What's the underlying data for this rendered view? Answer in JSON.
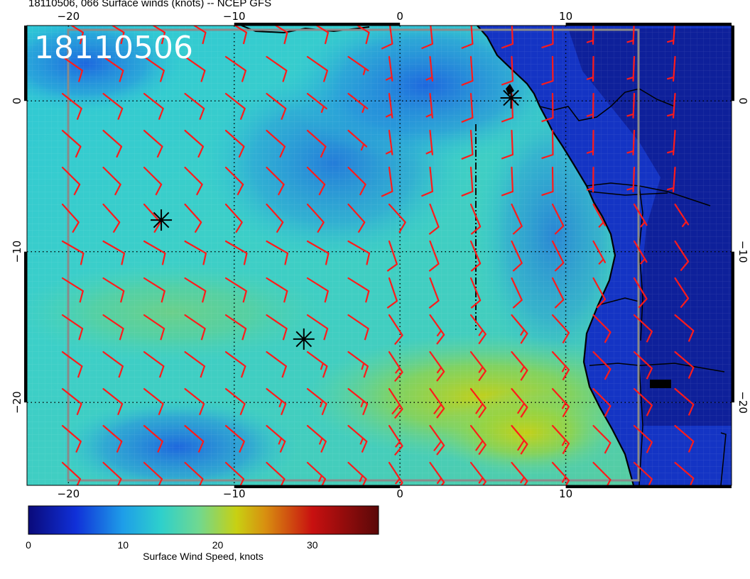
{
  "header": {
    "title": "18110506, 066 Surface winds (knots) -- NCEP GFS"
  },
  "map": {
    "date_stamp": "18110506",
    "projection": "lon/lat",
    "lon_range": [
      -22.5,
      20
    ],
    "lat_range": [
      -25.5,
      5
    ],
    "lon_ticks": [
      {
        "value": -20,
        "label": "−20"
      },
      {
        "value": -10,
        "label": "−10"
      },
      {
        "value": 0,
        "label": "0"
      },
      {
        "value": 10,
        "label": "10"
      }
    ],
    "lat_ticks": [
      {
        "value": 0,
        "label": "0"
      },
      {
        "value": -10,
        "label": "−10"
      },
      {
        "value": -20,
        "label": "−20"
      }
    ],
    "storm_markers": [
      {
        "lon": -14.4,
        "lat": -7.9
      },
      {
        "lon": -5.8,
        "lat": -15.8
      },
      {
        "lon": 6.7,
        "lat": 0.2
      }
    ],
    "barb_color": "#ff1a1a"
  },
  "colorbar": {
    "label": "Surface Wind Speed, knots",
    "range": [
      0,
      37
    ],
    "ticks": [
      {
        "value": 0,
        "label": "0"
      },
      {
        "value": 10,
        "label": "10"
      },
      {
        "value": 20,
        "label": "20"
      },
      {
        "value": 30,
        "label": "30"
      }
    ],
    "stops": [
      {
        "value": 0,
        "color": "#0a0a7a"
      },
      {
        "value": 5,
        "color": "#1030d8"
      },
      {
        "value": 10,
        "color": "#1e9ee8"
      },
      {
        "value": 14,
        "color": "#2ed0cc"
      },
      {
        "value": 18,
        "color": "#70d890"
      },
      {
        "value": 22,
        "color": "#c8d012"
      },
      {
        "value": 25,
        "color": "#d89010"
      },
      {
        "value": 30,
        "color": "#c81010"
      },
      {
        "value": 37,
        "color": "#5a0808"
      }
    ]
  }
}
